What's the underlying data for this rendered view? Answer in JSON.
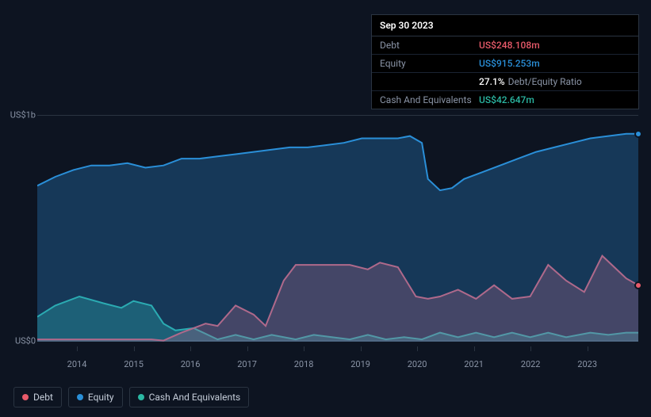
{
  "tooltip": {
    "date": "Sep 30 2023",
    "rows": [
      {
        "label": "Debt",
        "value": "US$248.108m",
        "color": "#e85a6a"
      },
      {
        "label": "Equity",
        "value": "US$915.253m",
        "color": "#2a8fd8"
      },
      {
        "label": "",
        "value": "27.1%",
        "suffix": "Debt/Equity Ratio",
        "color": "#ffffff"
      },
      {
        "label": "Cash And Equivalents",
        "value": "US$42.647m",
        "color": "#2bb8a3"
      }
    ]
  },
  "chart": {
    "type": "area",
    "background_color": "#0d1421",
    "grid_color": "#2a3441",
    "y_labels": [
      {
        "text": "US$1b",
        "frac": 0
      },
      {
        "text": "US$0",
        "frac": 1
      }
    ],
    "x_ticks": [
      "2014",
      "2015",
      "2016",
      "2017",
      "2018",
      "2019",
      "2020",
      "2021",
      "2022",
      "2023"
    ],
    "x_start_year": 2013.3,
    "x_end_year": 2023.9,
    "series": [
      {
        "name": "Cash And Equivalents",
        "color": "#2bb8a3",
        "fill_opacity": 0.35,
        "points": [
          [
            0,
            0.89
          ],
          [
            0.03,
            0.84
          ],
          [
            0.07,
            0.8
          ],
          [
            0.11,
            0.83
          ],
          [
            0.14,
            0.85
          ],
          [
            0.16,
            0.82
          ],
          [
            0.19,
            0.84
          ],
          [
            0.21,
            0.92
          ],
          [
            0.23,
            0.95
          ],
          [
            0.26,
            0.94
          ],
          [
            0.3,
            0.99
          ],
          [
            0.33,
            0.97
          ],
          [
            0.36,
            0.99
          ],
          [
            0.39,
            0.97
          ],
          [
            0.43,
            0.99
          ],
          [
            0.46,
            0.97
          ],
          [
            0.49,
            0.98
          ],
          [
            0.52,
            0.99
          ],
          [
            0.55,
            0.97
          ],
          [
            0.58,
            0.99
          ],
          [
            0.61,
            0.98
          ],
          [
            0.64,
            0.99
          ],
          [
            0.67,
            0.96
          ],
          [
            0.7,
            0.98
          ],
          [
            0.73,
            0.96
          ],
          [
            0.76,
            0.98
          ],
          [
            0.79,
            0.96
          ],
          [
            0.82,
            0.98
          ],
          [
            0.85,
            0.96
          ],
          [
            0.88,
            0.98
          ],
          [
            0.92,
            0.96
          ],
          [
            0.95,
            0.97
          ],
          [
            0.98,
            0.96
          ],
          [
            1.0,
            0.96
          ]
        ]
      },
      {
        "name": "Debt",
        "color": "#e85a6a",
        "fill_opacity": 0.3,
        "points": [
          [
            0,
            0.99
          ],
          [
            0.05,
            0.99
          ],
          [
            0.1,
            0.99
          ],
          [
            0.15,
            0.99
          ],
          [
            0.19,
            0.99
          ],
          [
            0.21,
            0.995
          ],
          [
            0.24,
            0.96
          ],
          [
            0.26,
            0.94
          ],
          [
            0.28,
            0.92
          ],
          [
            0.3,
            0.93
          ],
          [
            0.33,
            0.84
          ],
          [
            0.36,
            0.88
          ],
          [
            0.38,
            0.93
          ],
          [
            0.41,
            0.73
          ],
          [
            0.43,
            0.66
          ],
          [
            0.46,
            0.66
          ],
          [
            0.49,
            0.66
          ],
          [
            0.52,
            0.66
          ],
          [
            0.55,
            0.68
          ],
          [
            0.57,
            0.65
          ],
          [
            0.6,
            0.67
          ],
          [
            0.63,
            0.8
          ],
          [
            0.65,
            0.81
          ],
          [
            0.67,
            0.8
          ],
          [
            0.7,
            0.77
          ],
          [
            0.73,
            0.81
          ],
          [
            0.76,
            0.75
          ],
          [
            0.79,
            0.81
          ],
          [
            0.82,
            0.8
          ],
          [
            0.85,
            0.66
          ],
          [
            0.88,
            0.73
          ],
          [
            0.91,
            0.78
          ],
          [
            0.94,
            0.62
          ],
          [
            0.96,
            0.67
          ],
          [
            0.98,
            0.72
          ],
          [
            1.0,
            0.75
          ]
        ]
      },
      {
        "name": "Equity",
        "color": "#2a8fd8",
        "fill_opacity": 0.3,
        "points": [
          [
            0,
            0.31
          ],
          [
            0.03,
            0.27
          ],
          [
            0.06,
            0.24
          ],
          [
            0.09,
            0.22
          ],
          [
            0.12,
            0.22
          ],
          [
            0.15,
            0.21
          ],
          [
            0.18,
            0.23
          ],
          [
            0.21,
            0.22
          ],
          [
            0.24,
            0.19
          ],
          [
            0.27,
            0.19
          ],
          [
            0.3,
            0.18
          ],
          [
            0.33,
            0.17
          ],
          [
            0.36,
            0.16
          ],
          [
            0.39,
            0.15
          ],
          [
            0.42,
            0.14
          ],
          [
            0.45,
            0.14
          ],
          [
            0.48,
            0.13
          ],
          [
            0.51,
            0.12
          ],
          [
            0.54,
            0.1
          ],
          [
            0.57,
            0.1
          ],
          [
            0.6,
            0.1
          ],
          [
            0.62,
            0.09
          ],
          [
            0.64,
            0.12
          ],
          [
            0.65,
            0.28
          ],
          [
            0.67,
            0.33
          ],
          [
            0.69,
            0.32
          ],
          [
            0.71,
            0.28
          ],
          [
            0.74,
            0.25
          ],
          [
            0.77,
            0.22
          ],
          [
            0.8,
            0.19
          ],
          [
            0.83,
            0.16
          ],
          [
            0.86,
            0.14
          ],
          [
            0.89,
            0.12
          ],
          [
            0.92,
            0.1
          ],
          [
            0.95,
            0.09
          ],
          [
            0.98,
            0.08
          ],
          [
            1.0,
            0.08
          ]
        ]
      }
    ],
    "markers": [
      {
        "series": "Equity",
        "x": 1.0,
        "y": 0.08,
        "color": "#2a8fd8"
      },
      {
        "series": "Debt",
        "x": 1.0,
        "y": 0.75,
        "color": "#e85a6a"
      }
    ]
  },
  "legend": [
    {
      "label": "Debt",
      "color": "#e85a6a"
    },
    {
      "label": "Equity",
      "color": "#2a8fd8"
    },
    {
      "label": "Cash And Equivalents",
      "color": "#2bb8a3"
    }
  ]
}
